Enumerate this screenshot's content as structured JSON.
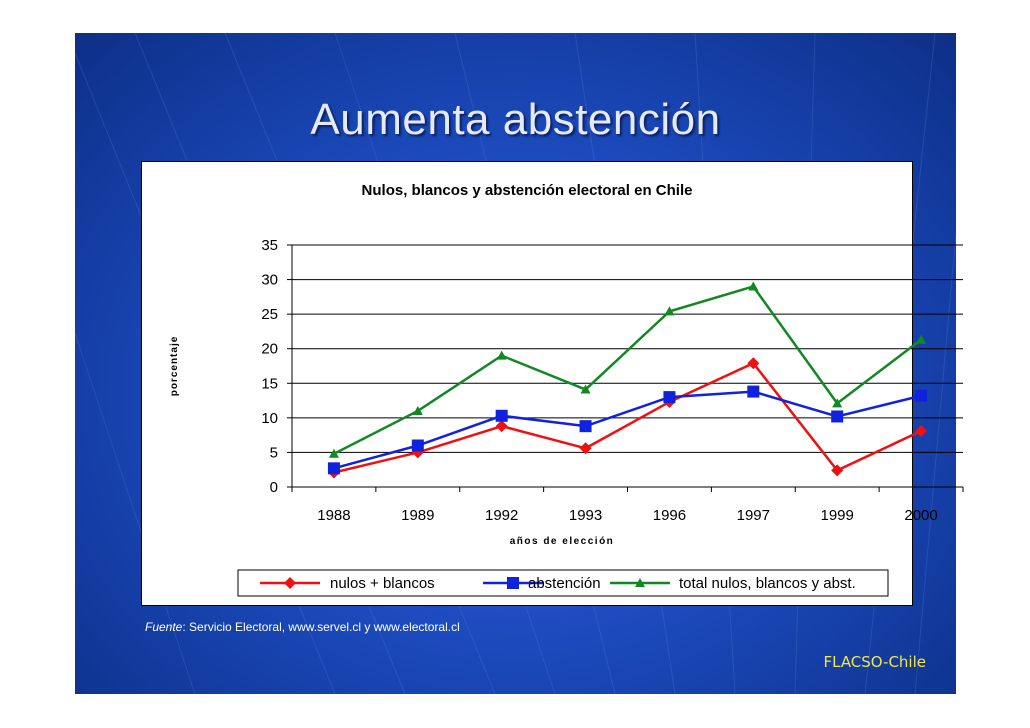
{
  "slide": {
    "title": "Aumenta abstención",
    "source_label": "Fuente",
    "source_text": ": Servicio Electoral, www.servel.cl y www.electoral.cl",
    "brand": "FLACSO-Chile"
  },
  "chart_data": {
    "type": "line",
    "title": "Nulos, blancos y abstención electoral en Chile",
    "xlabel": "años de elección",
    "ylabel": "porcentaje",
    "categories": [
      "1988",
      "1989",
      "1992",
      "1993",
      "1996",
      "1997",
      "1999",
      "2000"
    ],
    "ylim": [
      0,
      35
    ],
    "yticks": [
      0,
      5,
      10,
      15,
      20,
      25,
      30,
      35
    ],
    "grid": true,
    "legend": "bottom",
    "series": [
      {
        "name": "nulos + blancos",
        "color": "#ee1111",
        "marker": "diamond",
        "values": [
          2.1,
          5.0,
          8.8,
          5.6,
          12.3,
          17.9,
          2.4,
          8.1
        ]
      },
      {
        "name": "abstención",
        "color": "#1122dd",
        "marker": "square",
        "values": [
          2.7,
          6.0,
          10.3,
          8.8,
          13.0,
          13.8,
          10.2,
          13.2
        ]
      },
      {
        "name": "total nulos, blancos y abst.",
        "color": "#118822",
        "marker": "triangle",
        "values": [
          4.8,
          11.0,
          19.0,
          14.1,
          25.4,
          29.0,
          12.1,
          21.3
        ]
      }
    ]
  }
}
